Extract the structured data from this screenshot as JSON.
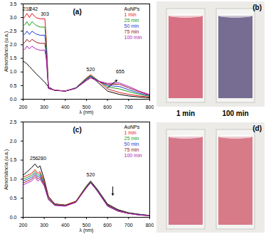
{
  "chart_data": [
    {
      "type": "line",
      "panel": "(a)",
      "x_label": "λ (nm)",
      "y_label": "Absorbância (u.a.)",
      "legend": "top-right",
      "xlim": [
        200,
        800
      ],
      "xticks": [
        200,
        300,
        400,
        500,
        600,
        700,
        800
      ],
      "ylim": [
        0,
        3.5
      ],
      "yticks": [
        {
          "value": 0,
          "label": "0.0"
        },
        0.5,
        {
          "value": 1,
          "label": "1.0"
        },
        1.5,
        {
          "value": 2,
          "label": "2.0"
        },
        2.5,
        {
          "value": 3,
          "label": "3.0"
        },
        3.5
      ],
      "x": [
        200,
        210,
        218,
        230,
        242,
        260,
        280,
        303,
        310,
        320,
        350,
        400,
        450,
        500,
        520,
        550,
        600,
        655,
        700,
        750,
        800
      ],
      "series": [
        {
          "name": "AuNPs",
          "color": "#000000",
          "values": [
            1.4,
            1.35,
            1.3,
            1.2,
            1.1,
            0.95,
            0.8,
            0.62,
            0.55,
            0.45,
            0.32,
            0.3,
            0.4,
            0.75,
            0.85,
            0.65,
            0.3,
            0.18,
            0.12,
            0.08,
            0.05
          ]
        },
        {
          "name": "1 min",
          "color": "#e8141c",
          "values": [
            2.95,
            3.05,
            3.15,
            3.0,
            3.15,
            3.0,
            2.95,
            2.95,
            2.2,
            0.4,
            0.33,
            0.3,
            0.42,
            0.78,
            0.9,
            0.72,
            0.38,
            0.25,
            0.18,
            0.12,
            0.08
          ]
        },
        {
          "name": "25 min",
          "color": "#1a9e1a",
          "values": [
            2.7,
            2.75,
            2.85,
            2.7,
            2.85,
            2.72,
            2.65,
            2.65,
            2.0,
            0.4,
            0.33,
            0.3,
            0.42,
            0.76,
            0.87,
            0.72,
            0.45,
            0.38,
            0.28,
            0.18,
            0.1
          ]
        },
        {
          "name": "50 min",
          "color": "#1f3fd6",
          "values": [
            2.35,
            2.4,
            2.5,
            2.38,
            2.5,
            2.4,
            2.35,
            2.35,
            1.8,
            0.4,
            0.33,
            0.3,
            0.41,
            0.73,
            0.84,
            0.7,
            0.5,
            0.47,
            0.35,
            0.22,
            0.13
          ]
        },
        {
          "name": "75 min",
          "color": "#9a1a1a",
          "values": [
            2.05,
            2.1,
            2.2,
            2.1,
            2.2,
            2.1,
            2.05,
            2.05,
            1.6,
            0.4,
            0.33,
            0.3,
            0.4,
            0.7,
            0.8,
            0.68,
            0.55,
            0.55,
            0.42,
            0.27,
            0.15
          ]
        },
        {
          "name": "100 min",
          "color": "#b020b8",
          "values": [
            1.8,
            1.85,
            1.95,
            1.85,
            1.95,
            1.85,
            1.8,
            1.8,
            1.45,
            0.4,
            0.33,
            0.3,
            0.4,
            0.68,
            0.78,
            0.68,
            0.58,
            0.6,
            0.47,
            0.3,
            0.17
          ]
        }
      ],
      "annotations": [
        {
          "text": "218",
          "x": 218,
          "y": 3.32
        },
        {
          "text": "242",
          "x": 250,
          "y": 3.32
        },
        {
          "text": "303",
          "x": 303,
          "y": 3.12
        },
        {
          "text": "520",
          "x": 520,
          "y": 1.08
        },
        {
          "text": "655",
          "x": 660,
          "y": 1.0
        }
      ],
      "arrows": [
        {
          "x1": 600,
          "y1": 0.42,
          "x2": 645,
          "y2": 0.7
        }
      ]
    },
    {
      "type": "line",
      "panel": "(c)",
      "x_label": "λ (nm)",
      "y_label": "Absorbância (u.a.)",
      "legend": "top-right",
      "xlim": [
        200,
        800
      ],
      "xticks": [
        200,
        300,
        400,
        500,
        600,
        700,
        800
      ],
      "ylim": [
        0,
        2.5
      ],
      "yticks": [
        {
          "value": 0,
          "label": "0.0"
        },
        0.5,
        {
          "value": 1,
          "label": "1.0"
        },
        1.5,
        {
          "value": 2,
          "label": "2.0"
        },
        2.5
      ],
      "x": [
        200,
        220,
        240,
        256,
        270,
        280,
        300,
        320,
        350,
        400,
        450,
        500,
        520,
        550,
        600,
        650,
        700,
        750,
        800
      ],
      "series": [
        {
          "name": "AuNPs",
          "color": "#000000",
          "values": [
            1.1,
            1.2,
            1.3,
            1.4,
            1.3,
            1.35,
            1.0,
            0.55,
            0.35,
            0.32,
            0.42,
            0.82,
            0.95,
            0.75,
            0.35,
            0.2,
            0.12,
            0.08,
            0.05
          ]
        },
        {
          "name": "1 min",
          "color": "#e8141c",
          "values": [
            1.05,
            1.1,
            1.15,
            1.25,
            1.15,
            1.2,
            0.95,
            0.55,
            0.35,
            0.32,
            0.42,
            0.8,
            0.93,
            0.72,
            0.33,
            0.18,
            0.11,
            0.07,
            0.05
          ]
        },
        {
          "name": "25 min",
          "color": "#1a9e1a",
          "values": [
            1.0,
            1.05,
            1.1,
            1.2,
            1.1,
            1.15,
            0.9,
            0.52,
            0.34,
            0.31,
            0.41,
            0.8,
            0.93,
            0.72,
            0.32,
            0.17,
            0.11,
            0.07,
            0.05
          ]
        },
        {
          "name": "50 min",
          "color": "#1f3fd6",
          "values": [
            0.95,
            1.0,
            1.05,
            1.15,
            1.05,
            1.1,
            0.88,
            0.5,
            0.33,
            0.3,
            0.4,
            0.78,
            0.92,
            0.71,
            0.31,
            0.17,
            0.1,
            0.07,
            0.04
          ]
        },
        {
          "name": "75 min",
          "color": "#9a1a1a",
          "values": [
            0.9,
            0.95,
            1.0,
            1.1,
            1.0,
            1.05,
            0.85,
            0.48,
            0.32,
            0.3,
            0.4,
            0.78,
            0.91,
            0.7,
            0.3,
            0.16,
            0.1,
            0.06,
            0.04
          ]
        },
        {
          "name": "100 min",
          "color": "#b020b8",
          "values": [
            0.85,
            0.9,
            0.95,
            1.05,
            0.95,
            1.0,
            0.82,
            0.46,
            0.31,
            0.29,
            0.39,
            0.77,
            0.9,
            0.7,
            0.29,
            0.16,
            0.1,
            0.06,
            0.04
          ]
        }
      ],
      "annotations": [
        {
          "text": "256",
          "x": 252,
          "y": 1.55
        },
        {
          "text": "280",
          "x": 290,
          "y": 1.55
        },
        {
          "text": "520",
          "x": 520,
          "y": 1.12
        }
      ],
      "arrows": [
        {
          "x1": 625,
          "y1": 0.8,
          "x2": 625,
          "y2": 0.58
        }
      ]
    }
  ],
  "photos": [
    {
      "label": "(b)",
      "items": [
        {
          "caption": "1 min",
          "color": "#d4647a"
        },
        {
          "caption": "100 min",
          "color": "#6b5f8a"
        }
      ]
    },
    {
      "label": "(d)",
      "items": [
        {
          "color": "#d06c80"
        },
        {
          "color": "#d4707f"
        }
      ]
    }
  ]
}
